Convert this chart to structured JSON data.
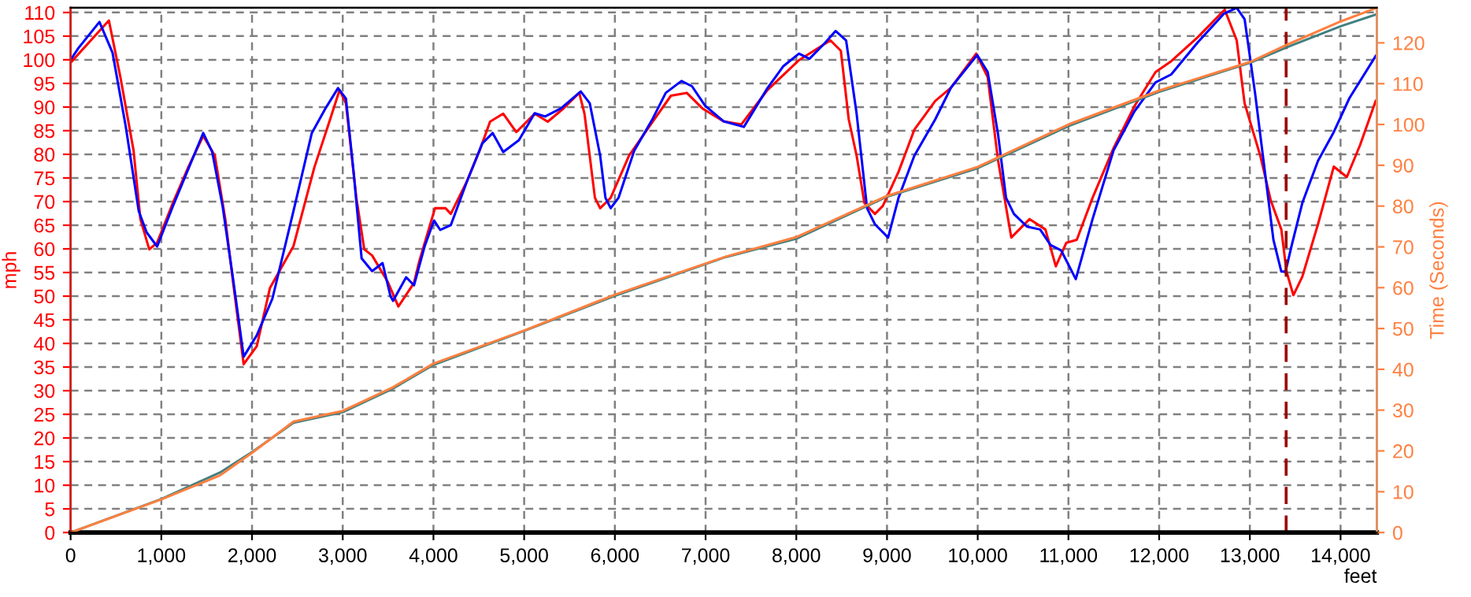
{
  "chart_data": {
    "type": "line",
    "xlabel": "feet",
    "ylabel": "mph",
    "y2label": "Time (Seconds)",
    "xlim": [
      0,
      14400
    ],
    "ylim": [
      0,
      111
    ],
    "y2lim": [
      0,
      128.6
    ],
    "xticks": [
      0,
      {
        "value": 1000,
        "label": "1,000"
      },
      {
        "value": 2000,
        "label": "2,000"
      },
      {
        "value": 3000,
        "label": "3,000"
      },
      {
        "value": 4000,
        "label": "4,000"
      },
      {
        "value": 5000,
        "label": "5,000"
      },
      {
        "value": 6000,
        "label": "6,000"
      },
      {
        "value": 7000,
        "label": "7,000"
      },
      {
        "value": 8000,
        "label": "8,000"
      },
      {
        "value": 9000,
        "label": "9,000"
      },
      {
        "value": 10000,
        "label": "10,000"
      },
      {
        "value": 11000,
        "label": "11,000"
      },
      {
        "value": 12000,
        "label": "12,000"
      },
      {
        "value": 13000,
        "label": "13,000"
      },
      {
        "value": 14000,
        "label": "14,000"
      }
    ],
    "yticks": [
      0,
      5,
      10,
      15,
      20,
      25,
      30,
      35,
      40,
      45,
      50,
      55,
      60,
      65,
      70,
      75,
      80,
      85,
      90,
      95,
      100,
      105,
      110
    ],
    "y2ticks": [
      0,
      10,
      20,
      30,
      40,
      50,
      60,
      70,
      80,
      90,
      100,
      110,
      120
    ],
    "grid": true,
    "legend": false,
    "ref_lines": [
      {
        "axis": "x",
        "value": 13400,
        "color": "#990000",
        "line_style": "dashed"
      }
    ],
    "series": [
      {
        "color": "#408080",
        "axis": "y2",
        "x": [
          0,
          1000,
          1647,
          2006,
          2457,
          3000,
          3555,
          4000,
          5000,
          6000,
          7220,
          8000,
          9000,
          10000,
          11000,
          12000,
          13000,
          13416,
          14006,
          14400
        ],
        "values": [
          0,
          8.2,
          14.7,
          19.8,
          26.9,
          29.5,
          35.3,
          41.1,
          49.4,
          58,
          67.5,
          72,
          82.3,
          89.3,
          99.6,
          108,
          115.1,
          119,
          124.1,
          127
        ]
      },
      {
        "color": "#ff8040",
        "axis": "y2",
        "x": [
          0,
          1000,
          1647,
          2006,
          2457,
          3000,
          3555,
          4000,
          5000,
          6000,
          7220,
          8000,
          9000,
          10000,
          11000,
          12000,
          13000,
          13416,
          14006,
          14400
        ],
        "values": [
          0,
          8.1,
          14,
          19.6,
          27.2,
          29.8,
          35.6,
          41.4,
          49.5,
          58.3,
          67.6,
          72.4,
          82.5,
          89.6,
          100,
          108.3,
          115.3,
          119.6,
          125.3,
          128.6
        ]
      },
      {
        "color": "#ff0000",
        "x": [
          0,
          422,
          549,
          694,
          769,
          867,
          954,
          1127,
          1300,
          1462,
          1590,
          1705,
          1792,
          1908,
          2052,
          2197,
          2457,
          2688,
          2861,
          2965,
          3035,
          3150,
          3237,
          3324,
          3497,
          3613,
          3786,
          3844,
          4017,
          4133,
          4191,
          4364,
          4509,
          4624,
          4769,
          4913,
          5116,
          5260,
          5433,
          5607,
          5665,
          5780,
          5838,
          5954,
          6156,
          6416,
          6618,
          6792,
          6965,
          7197,
          7393,
          7682,
          8029,
          8376,
          8491,
          8578,
          8665,
          8751,
          8867,
          8954,
          9127,
          9301,
          9532,
          9705,
          9983,
          10110,
          10225,
          10370,
          10572,
          10746,
          10861,
          10977,
          11092,
          11266,
          11497,
          11728,
          11960,
          12133,
          12422,
          12723,
          12855,
          12942,
          13115,
          13231,
          13347,
          13404,
          13480,
          13578,
          13751,
          13925,
          14069,
          14214,
          14387
        ],
        "values": [
          99.4,
          108.3,
          96.3,
          80.8,
          66.3,
          59.9,
          61.3,
          69.7,
          77.4,
          83.9,
          79.7,
          66.3,
          52.8,
          35.6,
          39.4,
          51.7,
          60.6,
          77.3,
          87.4,
          93.6,
          90.8,
          70.8,
          59.9,
          58.6,
          53,
          47.8,
          52.8,
          57.4,
          68.6,
          68.6,
          67.4,
          74.1,
          80.8,
          86.9,
          88.6,
          84.7,
          88.6,
          86.9,
          89.7,
          93,
          88.6,
          70.8,
          68.6,
          70.8,
          79.7,
          86.9,
          92.4,
          93,
          89.7,
          87,
          86.3,
          93.6,
          99.9,
          104.1,
          101.9,
          87.4,
          79.7,
          69.7,
          67.4,
          69.1,
          76.3,
          85.2,
          91.3,
          94.1,
          101.3,
          96.3,
          78.6,
          62.4,
          66.3,
          64.1,
          56.3,
          61.3,
          61.9,
          70.8,
          81.3,
          90.2,
          97.4,
          99.7,
          104.7,
          110.6,
          104.1,
          90.8,
          79.7,
          70.2,
          64.1,
          55.2,
          50.2,
          54.1,
          65.2,
          77.4,
          75.2,
          81.9,
          91.3
        ]
      },
      {
        "color": "#0000ff",
        "x": [
          0,
          87,
          318,
          462,
          607,
          751,
          838,
          954,
          1127,
          1300,
          1462,
          1561,
          1676,
          1792,
          1908,
          2052,
          2225,
          2457,
          2659,
          2803,
          2948,
          3035,
          3121,
          3208,
          3324,
          3439,
          3526,
          3555,
          3699,
          3786,
          3902,
          4006,
          4075,
          4191,
          4364,
          4538,
          4653,
          4769,
          4942,
          5116,
          5231,
          5405,
          5624,
          5723,
          5838,
          5896,
          5954,
          6040,
          6214,
          6416,
          6561,
          6734,
          6850,
          6994,
          7197,
          7422,
          7682,
          7855,
          8029,
          8145,
          8318,
          8434,
          8549,
          8665,
          8780,
          8867,
          9012,
          9127,
          9301,
          9532,
          9705,
          9994,
          10110,
          10225,
          10312,
          10399,
          10543,
          10688,
          10803,
          10919,
          11081,
          11266,
          11497,
          11728,
          11960,
          12133,
          12422,
          12711,
          12855,
          12942,
          13057,
          13173,
          13260,
          13347,
          13393,
          13462,
          13578,
          13751,
          13925,
          14098,
          14387
        ],
        "values": [
          100,
          102.5,
          108,
          101.5,
          86,
          68,
          63.5,
          60.5,
          69,
          77,
          84.5,
          80.5,
          69,
          53.5,
          37.2,
          41.7,
          49.5,
          68,
          84.5,
          89.5,
          94,
          91.8,
          76,
          58,
          55.3,
          57,
          50,
          49,
          54,
          52.3,
          60.5,
          66,
          64,
          65,
          74,
          82.3,
          84.5,
          80.5,
          83,
          88.7,
          88,
          89.7,
          93.3,
          90.8,
          79.7,
          70.8,
          68.6,
          70.8,
          80.8,
          87.5,
          93,
          95.5,
          94.4,
          90.3,
          87,
          85.8,
          94,
          98.6,
          101.3,
          100.2,
          103.6,
          106.1,
          104.1,
          88.6,
          68.6,
          65.2,
          62.4,
          70.8,
          79.7,
          87.4,
          94.1,
          101,
          97.4,
          84.1,
          70.8,
          67.4,
          64.7,
          64.1,
          60.8,
          59.7,
          53.6,
          66.3,
          80.8,
          89.1,
          95.2,
          96.9,
          103.6,
          109.7,
          111,
          108.6,
          93,
          75.2,
          61.9,
          55.2,
          55.2,
          60.8,
          69.7,
          78.6,
          84.7,
          91.9,
          100.8
        ]
      }
    ]
  }
}
